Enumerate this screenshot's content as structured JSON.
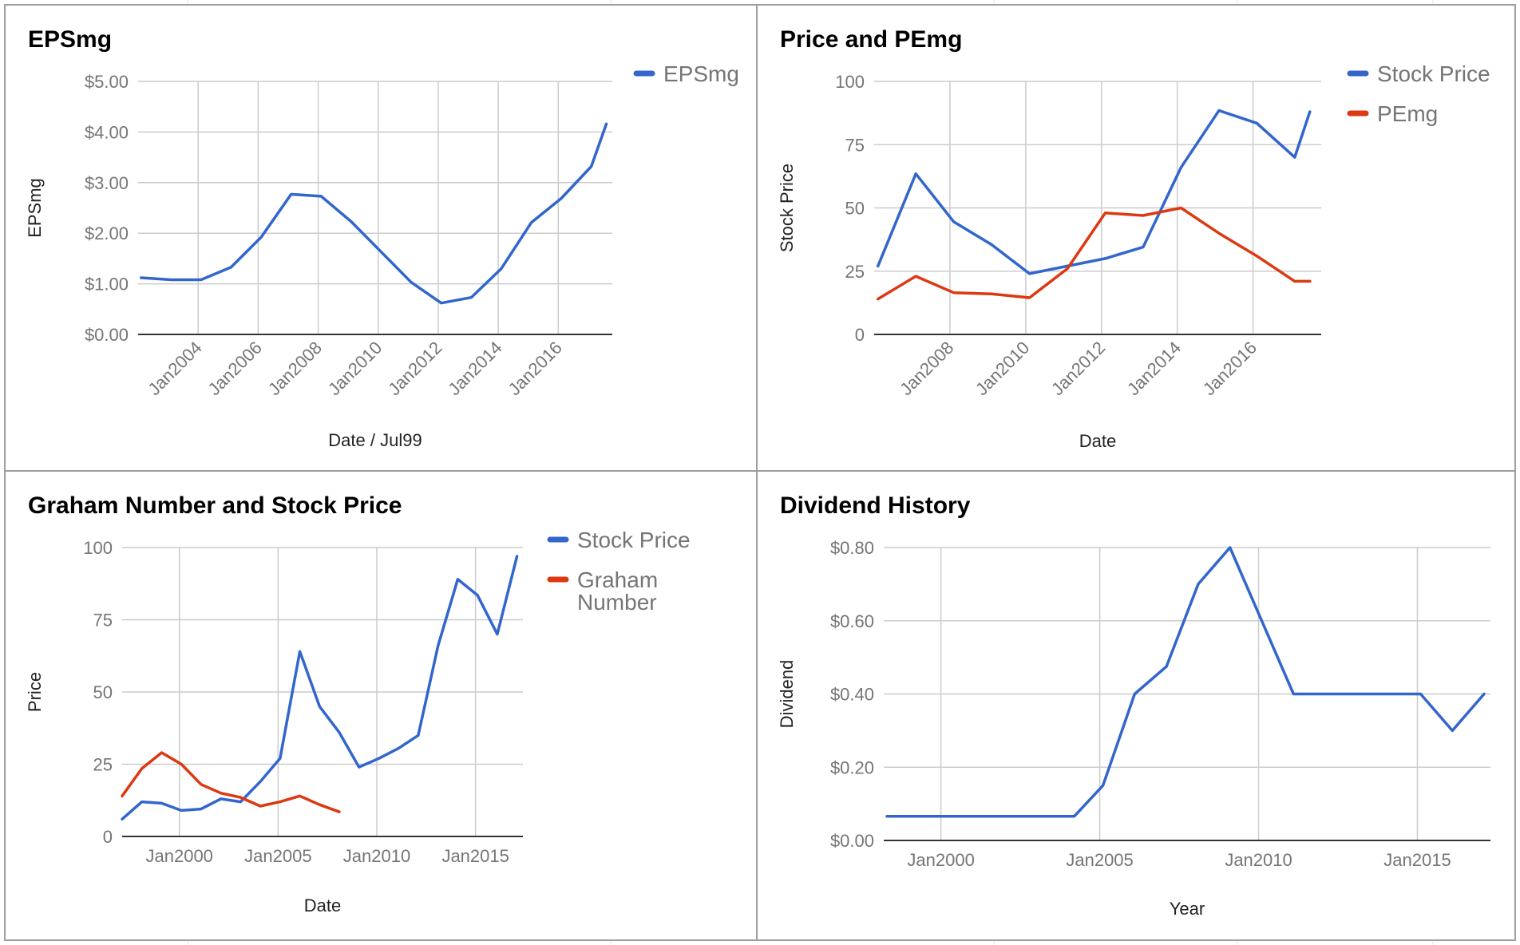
{
  "colors": {
    "blue": "#3366cc",
    "red": "#dc3912",
    "grid": "#cccccc",
    "axis": "#333333",
    "border": "#9e9e9e"
  },
  "chart_data": [
    {
      "type": "line",
      "title": "EPSmg",
      "xlabel": "Date / Jul99",
      "ylabel": "EPSmg",
      "ylim": [
        0,
        5
      ],
      "yticks": [
        "$0.00",
        "$1.00",
        "$2.00",
        "$3.00",
        "$4.00",
        "$5.00"
      ],
      "xlim": [
        2002.0,
        2017.8
      ],
      "xticks": [
        {
          "x": 2004,
          "label": "Jan2004"
        },
        {
          "x": 2006,
          "label": "Jan2006"
        },
        {
          "x": 2008,
          "label": "Jan2008"
        },
        {
          "x": 2010,
          "label": "Jan2010"
        },
        {
          "x": 2012,
          "label": "Jan2012"
        },
        {
          "x": 2014,
          "label": "Jan2014"
        },
        {
          "x": 2016,
          "label": "Jan2016"
        }
      ],
      "grid": true,
      "legend_position": "right",
      "series": [
        {
          "name": "EPSmg",
          "color": "#3366cc",
          "points": [
            [
              2002.1,
              1.12
            ],
            [
              2003.1,
              1.08
            ],
            [
              2004.1,
              1.08
            ],
            [
              2005.1,
              1.33
            ],
            [
              2006.1,
              1.92
            ],
            [
              2007.1,
              2.77
            ],
            [
              2008.1,
              2.73
            ],
            [
              2009.1,
              2.23
            ],
            [
              2010.1,
              1.63
            ],
            [
              2011.1,
              1.03
            ],
            [
              2012.1,
              0.62
            ],
            [
              2013.1,
              0.73
            ],
            [
              2014.1,
              1.3
            ],
            [
              2015.1,
              2.21
            ],
            [
              2016.1,
              2.69
            ],
            [
              2017.1,
              3.32
            ],
            [
              2017.6,
              4.16
            ]
          ]
        }
      ]
    },
    {
      "type": "line",
      "title": "Price and PEmg",
      "xlabel": "Date",
      "ylabel": "Stock Price",
      "ylim": [
        0,
        100
      ],
      "yticks": [
        "0",
        "25",
        "50",
        "75",
        "100"
      ],
      "xlim": [
        2006.0,
        2017.8
      ],
      "xticks": [
        {
          "x": 2008,
          "label": "Jan2008"
        },
        {
          "x": 2010,
          "label": "Jan2010"
        },
        {
          "x": 2012,
          "label": "Jan2012"
        },
        {
          "x": 2014,
          "label": "Jan2014"
        },
        {
          "x": 2016,
          "label": "Jan2016"
        }
      ],
      "grid": true,
      "legend_position": "right",
      "series": [
        {
          "name": "Stock Price",
          "color": "#3366cc",
          "points": [
            [
              2006.1,
              27
            ],
            [
              2007.1,
              63.5
            ],
            [
              2008.1,
              44.5
            ],
            [
              2009.1,
              35.5
            ],
            [
              2010.1,
              24
            ],
            [
              2011.1,
              27
            ],
            [
              2012.1,
              30
            ],
            [
              2013.1,
              34.5
            ],
            [
              2014.1,
              66
            ],
            [
              2015.1,
              88.5
            ],
            [
              2016.1,
              83.5
            ],
            [
              2017.1,
              70
            ],
            [
              2017.5,
              88
            ]
          ]
        },
        {
          "name": "PEmg",
          "color": "#dc3912",
          "points": [
            [
              2006.1,
              14
            ],
            [
              2007.1,
              23
            ],
            [
              2008.1,
              16.5
            ],
            [
              2009.1,
              16
            ],
            [
              2010.1,
              14.5
            ],
            [
              2011.1,
              26
            ],
            [
              2012.1,
              48
            ],
            [
              2013.1,
              47
            ],
            [
              2014.1,
              50
            ],
            [
              2015.1,
              40
            ],
            [
              2016.1,
              31
            ],
            [
              2017.1,
              21
            ],
            [
              2017.5,
              21
            ]
          ]
        }
      ]
    },
    {
      "type": "line",
      "title": "Graham Number and Stock Price",
      "xlabel": "Date",
      "ylabel": "Price",
      "ylim": [
        0,
        100
      ],
      "yticks": [
        "0",
        "25",
        "50",
        "75",
        "100"
      ],
      "xlim": [
        1997.1,
        2017.4
      ],
      "xticks": [
        {
          "x": 2000,
          "label": "Jan2000"
        },
        {
          "x": 2005,
          "label": "Jan2005"
        },
        {
          "x": 2010,
          "label": "Jan2010"
        },
        {
          "x": 2015,
          "label": "Jan2015"
        }
      ],
      "grid": true,
      "legend_position": "right",
      "series": [
        {
          "name": "Stock Price",
          "color": "#3366cc",
          "points": [
            [
              1997.1,
              6
            ],
            [
              1998.1,
              12
            ],
            [
              1999.1,
              11.5
            ],
            [
              2000.1,
              9
            ],
            [
              2001.1,
              9.5
            ],
            [
              2002.1,
              13
            ],
            [
              2003.1,
              12
            ],
            [
              2004.1,
              19
            ],
            [
              2005.1,
              27
            ],
            [
              2006.1,
              64
            ],
            [
              2007.1,
              45
            ],
            [
              2008.1,
              36
            ],
            [
              2009.1,
              24
            ],
            [
              2010.1,
              27
            ],
            [
              2011.1,
              30.5
            ],
            [
              2012.1,
              35
            ],
            [
              2013.1,
              66
            ],
            [
              2014.1,
              89
            ],
            [
              2015.1,
              83.5
            ],
            [
              2016.1,
              70
            ],
            [
              2017.1,
              97
            ]
          ]
        },
        {
          "name": "Graham Number",
          "color": "#dc3912",
          "points": [
            [
              1997.1,
              14
            ],
            [
              1998.1,
              23.5
            ],
            [
              1999.1,
              29
            ],
            [
              2000.1,
              25
            ],
            [
              2001.1,
              18
            ],
            [
              2002.1,
              15
            ],
            [
              2003.1,
              13.5
            ],
            [
              2004.1,
              10.5
            ],
            [
              2005.1,
              12
            ],
            [
              2006.1,
              14
            ],
            [
              2007.1,
              11
            ],
            [
              2008.1,
              8.5
            ]
          ]
        }
      ]
    },
    {
      "type": "line",
      "title": "Dividend History",
      "xlabel": "Year",
      "ylabel": "Dividend",
      "ylim": [
        0,
        0.8
      ],
      "yticks": [
        "$0.00",
        "$0.20",
        "$0.40",
        "$0.60",
        "$0.80"
      ],
      "xlim": [
        1998.2,
        2017.3
      ],
      "xticks": [
        {
          "x": 2000,
          "label": "Jan2000"
        },
        {
          "x": 2005,
          "label": "Jan2005"
        },
        {
          "x": 2010,
          "label": "Jan2010"
        },
        {
          "x": 2015,
          "label": "Jan2015"
        }
      ],
      "grid": true,
      "legend_position": "none",
      "series": [
        {
          "color": "#3366cc",
          "points": [
            [
              1998.3,
              0.066
            ],
            [
              1999.3,
              0.066
            ],
            [
              2000.3,
              0.066
            ],
            [
              2001.3,
              0.066
            ],
            [
              2002.3,
              0.066
            ],
            [
              2003.3,
              0.066
            ],
            [
              2004.2,
              0.066
            ],
            [
              2005.1,
              0.15
            ],
            [
              2006.1,
              0.4
            ],
            [
              2007.1,
              0.475
            ],
            [
              2008.1,
              0.7
            ],
            [
              2009.1,
              0.8
            ],
            [
              2010.1,
              0.6
            ],
            [
              2011.1,
              0.4
            ],
            [
              2012.1,
              0.4
            ],
            [
              2013.1,
              0.4
            ],
            [
              2014.1,
              0.4
            ],
            [
              2015.1,
              0.4
            ],
            [
              2016.1,
              0.3
            ],
            [
              2017.1,
              0.4
            ]
          ]
        }
      ]
    }
  ]
}
